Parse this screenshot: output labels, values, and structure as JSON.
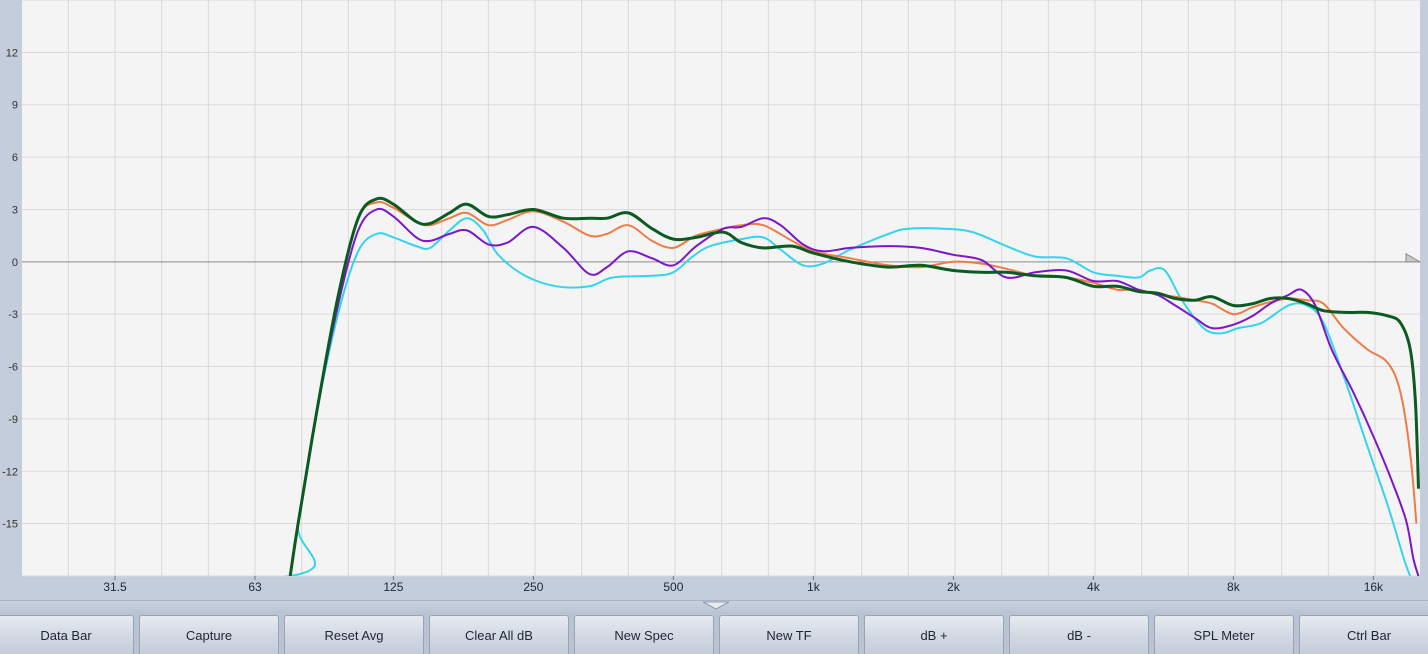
{
  "chart_data": {
    "type": "line",
    "x_scale": "log",
    "xlim_hz": [
      15,
      20000
    ],
    "ylim": [
      -18,
      15
    ],
    "y_ticks": [
      12,
      9,
      6,
      3,
      0,
      -3,
      -6,
      -9,
      -12,
      -15
    ],
    "x_tick_labels": [
      {
        "label": "31.5",
        "hz": 31.5
      },
      {
        "label": "63",
        "hz": 63
      },
      {
        "label": "125",
        "hz": 125
      },
      {
        "label": "250",
        "hz": 250
      },
      {
        "label": "500",
        "hz": 500
      },
      {
        "label": "1k",
        "hz": 1000
      },
      {
        "label": "2k",
        "hz": 2000
      },
      {
        "label": "4k",
        "hz": 4000
      },
      {
        "label": "8k",
        "hz": 8000
      },
      {
        "label": "16k",
        "hz": 16000
      }
    ],
    "grid": true,
    "reference_line_db": 0,
    "series": [
      {
        "color": "#35d4ec",
        "width": 2,
        "points": [
          [
            15.5,
            -16
          ],
          [
            16,
            -18
          ],
          [
            75,
            -18
          ],
          [
            78,
            -15
          ],
          [
            85,
            -9
          ],
          [
            95,
            -3
          ],
          [
            105,
            0.6
          ],
          [
            115,
            1.6
          ],
          [
            125,
            1.4
          ],
          [
            140,
            0.9
          ],
          [
            150,
            0.8
          ],
          [
            165,
            1.8
          ],
          [
            180,
            2.5
          ],
          [
            195,
            1.8
          ],
          [
            210,
            0.4
          ],
          [
            240,
            -0.8
          ],
          [
            280,
            -1.4
          ],
          [
            330,
            -1.4
          ],
          [
            370,
            -0.9
          ],
          [
            450,
            -0.8
          ],
          [
            500,
            -0.6
          ],
          [
            550,
            0.3
          ],
          [
            600,
            0.9
          ],
          [
            700,
            1.3
          ],
          [
            780,
            1.4
          ],
          [
            850,
            0.7
          ],
          [
            950,
            -0.2
          ],
          [
            1050,
            -0.1
          ],
          [
            1200,
            0.7
          ],
          [
            1450,
            1.6
          ],
          [
            1600,
            1.9
          ],
          [
            1900,
            1.9
          ],
          [
            2200,
            1.7
          ],
          [
            2600,
            0.9
          ],
          [
            3000,
            0.3
          ],
          [
            3500,
            0.2
          ],
          [
            4000,
            -0.6
          ],
          [
            4500,
            -0.8
          ],
          [
            5000,
            -0.9
          ],
          [
            5300,
            -0.5
          ],
          [
            5700,
            -0.5
          ],
          [
            6200,
            -2.2
          ],
          [
            6900,
            -3.8
          ],
          [
            7500,
            -4.1
          ],
          [
            8200,
            -3.8
          ],
          [
            9200,
            -3.5
          ],
          [
            10500,
            -2.5
          ],
          [
            11500,
            -2.5
          ],
          [
            12500,
            -3.5
          ],
          [
            14000,
            -7
          ],
          [
            15500,
            -10.5
          ],
          [
            17200,
            -14
          ],
          [
            18600,
            -17
          ],
          [
            19200,
            -18
          ]
        ]
      },
      {
        "color": "#ee7c46",
        "width": 2,
        "points": [
          [
            75,
            -18
          ],
          [
            78,
            -15
          ],
          [
            85,
            -9
          ],
          [
            95,
            -2
          ],
          [
            105,
            2.5
          ],
          [
            115,
            3.4
          ],
          [
            125,
            3.1
          ],
          [
            140,
            2.3
          ],
          [
            150,
            2.1
          ],
          [
            165,
            2.5
          ],
          [
            180,
            2.8
          ],
          [
            200,
            2.1
          ],
          [
            220,
            2.4
          ],
          [
            250,
            2.9
          ],
          [
            290,
            2.3
          ],
          [
            330,
            1.5
          ],
          [
            360,
            1.6
          ],
          [
            400,
            2.1
          ],
          [
            450,
            1.2
          ],
          [
            500,
            0.8
          ],
          [
            560,
            1.5
          ],
          [
            640,
            1.9
          ],
          [
            700,
            2.1
          ],
          [
            780,
            2.1
          ],
          [
            900,
            1.2
          ],
          [
            1000,
            0.6
          ],
          [
            1200,
            0.2
          ],
          [
            1450,
            -0.2
          ],
          [
            1700,
            -0.3
          ],
          [
            2000,
            0
          ],
          [
            2300,
            -0.1
          ],
          [
            2600,
            -0.4
          ],
          [
            3000,
            -0.8
          ],
          [
            3500,
            -0.9
          ],
          [
            4000,
            -1.2
          ],
          [
            4500,
            -1.6
          ],
          [
            5000,
            -1.6
          ],
          [
            5500,
            -1.9
          ],
          [
            6000,
            -2
          ],
          [
            6600,
            -2.2
          ],
          [
            7200,
            -2.4
          ],
          [
            8000,
            -3
          ],
          [
            8800,
            -2.6
          ],
          [
            9600,
            -2.3
          ],
          [
            10500,
            -2.1
          ],
          [
            11500,
            -2.2
          ],
          [
            12500,
            -2.4
          ],
          [
            13800,
            -3.8
          ],
          [
            15500,
            -5
          ],
          [
            17200,
            -5.8
          ],
          [
            18300,
            -7.5
          ],
          [
            19200,
            -11
          ],
          [
            19800,
            -15
          ]
        ]
      },
      {
        "color": "#7c16c9",
        "width": 2,
        "points": [
          [
            75,
            -18
          ],
          [
            78,
            -15
          ],
          [
            85,
            -9
          ],
          [
            95,
            -2.5
          ],
          [
            105,
            1.8
          ],
          [
            115,
            3
          ],
          [
            125,
            2.6
          ],
          [
            140,
            1.4
          ],
          [
            150,
            1.2
          ],
          [
            165,
            1.6
          ],
          [
            180,
            1.8
          ],
          [
            200,
            1
          ],
          [
            220,
            1.1
          ],
          [
            250,
            2
          ],
          [
            290,
            0.8
          ],
          [
            330,
            -0.7
          ],
          [
            360,
            -0.3
          ],
          [
            400,
            0.6
          ],
          [
            450,
            0.2
          ],
          [
            500,
            -0.2
          ],
          [
            560,
            0.9
          ],
          [
            640,
            1.9
          ],
          [
            700,
            2
          ],
          [
            780,
            2.5
          ],
          [
            850,
            2.1
          ],
          [
            950,
            1
          ],
          [
            1050,
            0.6
          ],
          [
            1200,
            0.8
          ],
          [
            1450,
            0.9
          ],
          [
            1700,
            0.8
          ],
          [
            2000,
            0.4
          ],
          [
            2300,
            0.1
          ],
          [
            2600,
            -0.9
          ],
          [
            3000,
            -0.6
          ],
          [
            3500,
            -0.5
          ],
          [
            4000,
            -1.1
          ],
          [
            4500,
            -1.1
          ],
          [
            5000,
            -1.6
          ],
          [
            5500,
            -1.9
          ],
          [
            6000,
            -2.5
          ],
          [
            6600,
            -3.2
          ],
          [
            7200,
            -3.8
          ],
          [
            8000,
            -3.6
          ],
          [
            8800,
            -3.1
          ],
          [
            9600,
            -2.4
          ],
          [
            10500,
            -1.9
          ],
          [
            11200,
            -1.6
          ],
          [
            12000,
            -2.5
          ],
          [
            13000,
            -5
          ],
          [
            14500,
            -7.5
          ],
          [
            16000,
            -10
          ],
          [
            17500,
            -12.5
          ],
          [
            18800,
            -14.8
          ],
          [
            19500,
            -17
          ],
          [
            20000,
            -18
          ]
        ]
      },
      {
        "color": "#0a5a22",
        "width": 3,
        "points": [
          [
            75,
            -18
          ],
          [
            78,
            -15
          ],
          [
            85,
            -9
          ],
          [
            95,
            -2
          ],
          [
            105,
            2.5
          ],
          [
            115,
            3.6
          ],
          [
            125,
            3.3
          ],
          [
            140,
            2.3
          ],
          [
            150,
            2.2
          ],
          [
            165,
            2.8
          ],
          [
            180,
            3.3
          ],
          [
            200,
            2.6
          ],
          [
            220,
            2.7
          ],
          [
            250,
            3
          ],
          [
            290,
            2.5
          ],
          [
            330,
            2.5
          ],
          [
            360,
            2.5
          ],
          [
            400,
            2.8
          ],
          [
            450,
            1.9
          ],
          [
            500,
            1.3
          ],
          [
            560,
            1.4
          ],
          [
            640,
            1.7
          ],
          [
            700,
            1.1
          ],
          [
            780,
            0.8
          ],
          [
            900,
            0.9
          ],
          [
            1000,
            0.5
          ],
          [
            1200,
            0
          ],
          [
            1450,
            -0.3
          ],
          [
            1700,
            -0.2
          ],
          [
            2000,
            -0.5
          ],
          [
            2300,
            -0.6
          ],
          [
            2600,
            -0.6
          ],
          [
            3000,
            -0.8
          ],
          [
            3500,
            -0.9
          ],
          [
            4000,
            -1.4
          ],
          [
            4500,
            -1.4
          ],
          [
            5000,
            -1.7
          ],
          [
            5500,
            -1.8
          ],
          [
            6000,
            -2.1
          ],
          [
            6600,
            -2.2
          ],
          [
            7200,
            -2
          ],
          [
            8000,
            -2.5
          ],
          [
            8800,
            -2.4
          ],
          [
            9600,
            -2.1
          ],
          [
            10500,
            -2.1
          ],
          [
            11500,
            -2.4
          ],
          [
            12500,
            -2.8
          ],
          [
            14000,
            -2.9
          ],
          [
            15500,
            -2.9
          ],
          [
            17200,
            -3.1
          ],
          [
            18300,
            -3.5
          ],
          [
            19200,
            -5
          ],
          [
            19700,
            -8
          ],
          [
            20000,
            -13
          ]
        ]
      }
    ]
  },
  "toolbar": {
    "buttons": [
      {
        "label": "Data Bar"
      },
      {
        "label": "Capture"
      },
      {
        "label": "Reset Avg"
      },
      {
        "label": "Clear All dB"
      },
      {
        "label": "New Spec"
      },
      {
        "label": "New TF"
      },
      {
        "label": "dB +"
      },
      {
        "label": "dB -"
      },
      {
        "label": "SPL Meter"
      },
      {
        "label": "Ctrl Bar"
      }
    ]
  }
}
